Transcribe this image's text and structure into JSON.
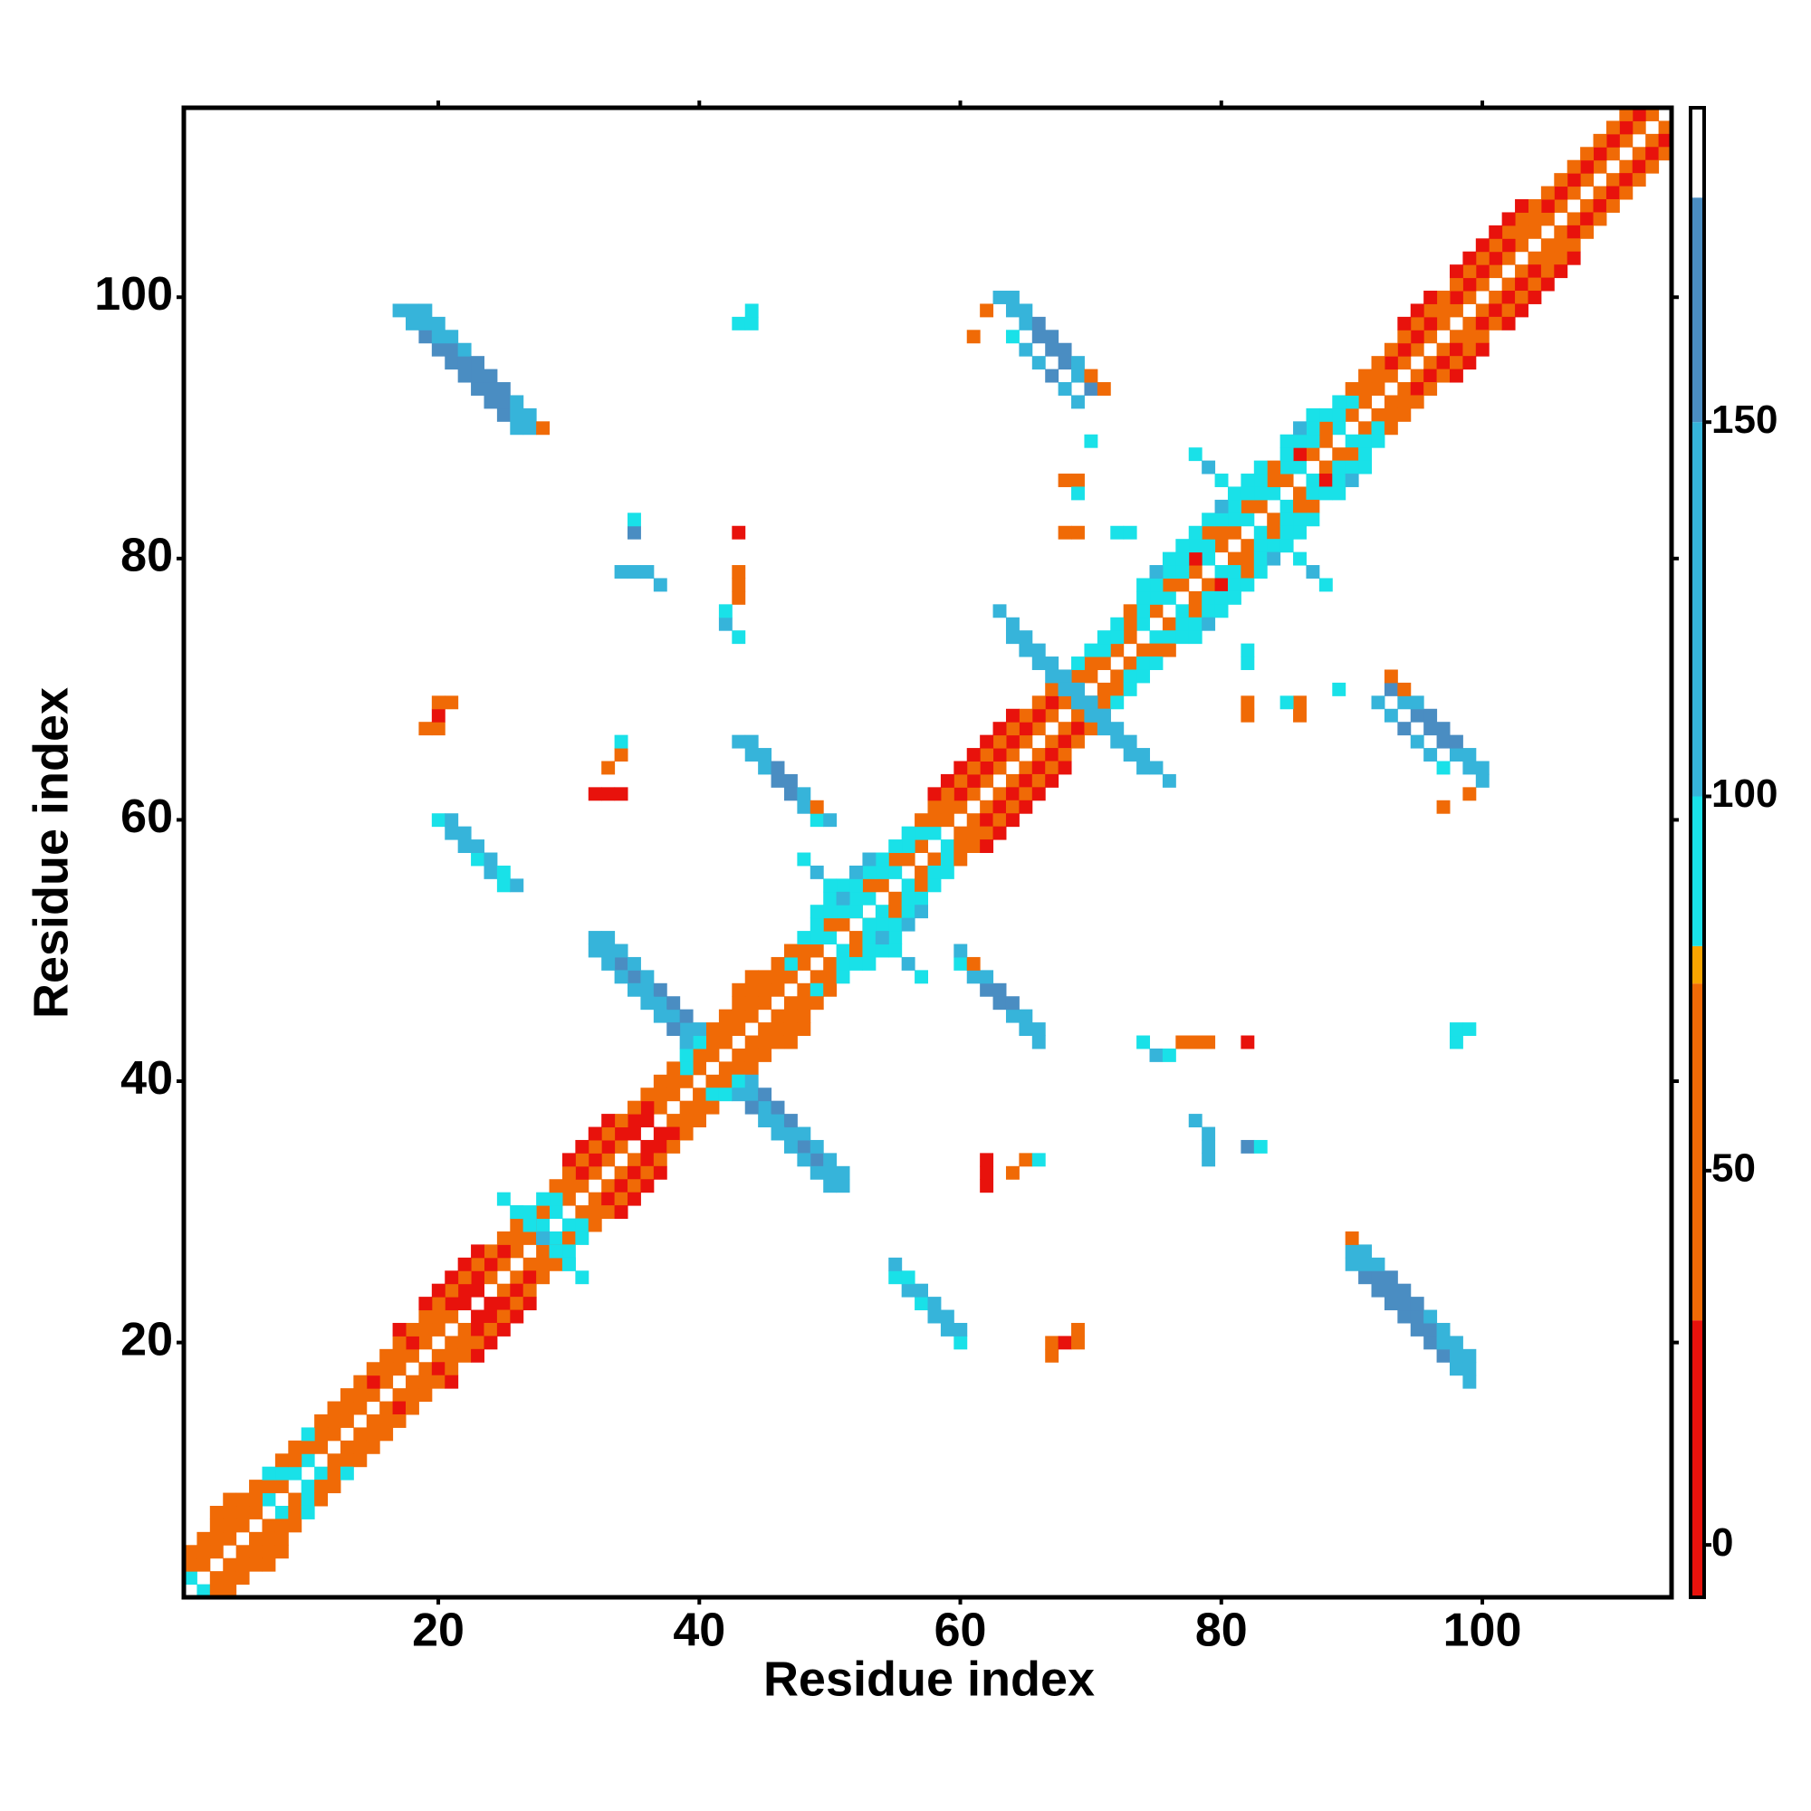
{
  "chart_data": {
    "type": "heatmap",
    "xlabel": "Residue index",
    "ylabel": "Residue index",
    "xlim": [
      0.5,
      114.5
    ],
    "ylim": [
      0.5,
      114.5
    ],
    "xticks": [
      20,
      40,
      60,
      80,
      100
    ],
    "yticks": [
      20,
      40,
      60,
      80,
      100
    ],
    "symmetric": true,
    "colorbar": {
      "lim": [
        -7,
        192
      ],
      "ticks": [
        0,
        50,
        100,
        150
      ],
      "bands": [
        {
          "from": -7,
          "to": 30,
          "color": "#e8120c"
        },
        {
          "from": 30,
          "to": 75,
          "color": "#f06a06"
        },
        {
          "from": 75,
          "to": 80,
          "color": "#f8a400"
        },
        {
          "from": 80,
          "to": 100,
          "color": "#19e1e8"
        },
        {
          "from": 100,
          "to": 150,
          "color": "#36b4da"
        },
        {
          "from": 150,
          "to": 180,
          "color": "#4a8dc2"
        },
        {
          "from": 180,
          "to": 192,
          "color": "#ffffff"
        }
      ]
    },
    "runs": [
      {
        "x": 1,
        "y": 2,
        "step": [
          1,
          1
        ],
        "values": [
          90,
          50,
          50,
          50,
          50,
          50,
          90,
          50,
          90,
          90,
          50,
          50,
          50,
          50,
          50,
          50,
          50,
          50,
          50,
          50,
          50,
          10,
          10,
          50,
          50,
          50,
          50,
          90,
          90,
          50,
          50,
          50,
          50,
          50,
          10,
          10,
          50,
          50,
          50,
          50,
          50,
          50,
          50,
          50,
          50,
          50,
          50,
          50,
          50,
          90,
          50,
          50,
          90,
          50,
          90,
          50,
          50,
          90,
          50,
          50,
          50,
          50,
          50,
          50,
          50,
          50,
          50,
          50,
          50,
          50,
          50,
          50,
          50,
          90,
          50,
          90,
          50,
          50,
          90,
          50,
          50,
          90,
          50,
          90,
          50,
          90,
          50,
          50,
          90,
          50,
          50,
          50,
          50,
          50,
          50,
          50,
          50,
          50,
          50,
          50,
          50,
          50,
          50,
          50,
          50,
          50,
          50,
          50,
          50,
          50,
          50,
          50,
          50
        ]
      },
      {
        "x": 1,
        "y": 3,
        "step": [
          1,
          1
        ],
        "values": [
          50,
          50,
          50,
          50,
          50,
          50,
          50,
          90,
          50,
          50,
          50,
          50,
          50,
          50,
          10,
          50,
          50,
          10,
          50,
          50,
          10,
          10,
          10,
          10,
          10,
          50,
          50,
          50,
          90,
          50,
          10,
          10,
          10,
          10,
          10,
          10,
          50,
          50,
          90,
          50,
          50,
          50,
          50,
          50,
          50,
          50,
          90,
          50,
          90,
          50,
          90,
          90,
          50,
          90,
          50,
          90,
          90,
          50,
          50,
          10,
          10,
          10,
          10,
          10,
          10,
          10,
          10,
          50,
          50,
          50,
          90,
          90,
          50,
          90,
          90,
          50,
          90,
          10,
          90,
          50,
          90,
          50,
          90,
          50,
          90,
          10,
          90,
          50,
          90,
          90,
          50,
          50,
          10,
          10,
          10,
          10,
          50,
          10,
          10,
          10,
          10,
          10,
          50,
          50,
          10,
          10,
          10,
          10,
          10,
          10,
          10,
          10
        ]
      },
      {
        "x": 1,
        "y": 4,
        "step": [
          1,
          1
        ],
        "values": [
          50,
          50,
          50,
          50,
          50,
          50,
          90,
          50,
          50,
          90,
          50,
          50,
          50,
          50,
          50,
          50,
          50,
          50,
          50,
          50,
          50,
          50,
          50,
          50,
          50,
          50,
          90,
          90,
          50,
          50,
          50,
          50,
          50,
          50,
          50,
          50,
          50,
          50,
          90,
          90,
          50,
          50,
          50,
          50,
          50,
          50,
          50,
          90,
          90,
          90,
          90,
          90,
          90,
          90,
          90,
          90,
          50,
          50,
          50,
          50,
          50,
          50,
          50,
          50,
          50,
          50,
          50,
          50,
          90,
          90,
          90,
          90,
          50,
          90,
          90,
          90,
          90,
          90,
          50,
          90,
          90,
          90,
          90,
          50,
          90,
          90,
          90,
          90,
          90,
          50,
          50,
          50,
          50,
          50,
          50,
          50,
          50,
          50,
          50,
          50,
          50,
          50,
          50,
          50,
          50,
          50,
          50,
          50,
          50,
          50,
          50
        ]
      },
      {
        "x": 1,
        "y": 5,
        "step": [
          1,
          1
        ],
        "values": [
          null,
          null,
          50,
          50,
          null,
          null,
          null,
          null,
          null,
          null,
          null,
          null,
          null,
          null,
          null,
          null,
          10,
          null,
          10,
          10,
          10,
          10,
          10,
          null,
          null,
          null,
          null,
          null,
          null,
          10,
          10,
          10,
          10,
          null,
          null,
          null,
          null,
          null,
          null,
          null,
          null,
          null,
          50,
          50,
          null,
          null,
          null,
          null,
          90,
          90,
          90,
          120,
          120,
          null,
          null,
          null,
          null,
          10,
          10,
          10,
          10,
          10,
          10,
          10,
          null,
          null,
          null,
          null,
          null,
          null,
          null,
          null,
          null,
          90,
          120,
          90,
          90,
          90,
          90,
          120,
          90,
          90,
          90,
          null,
          90,
          120,
          90,
          null,
          null,
          null,
          null,
          null,
          null,
          10,
          10,
          10,
          null,
          10,
          10,
          10,
          10,
          10,
          10,
          null,
          null,
          null,
          null,
          null,
          null,
          null
        ]
      },
      {
        "x": 17,
        "y": 99,
        "step": [
          1,
          -1
        ],
        "values": [
          120,
          120,
          160,
          160,
          160,
          160,
          160,
          160,
          160,
          120
        ]
      },
      {
        "x": 18,
        "y": 99,
        "step": [
          1,
          -1
        ],
        "values": [
          120,
          120,
          120,
          160,
          160,
          160,
          160,
          160,
          120,
          120
        ]
      },
      {
        "x": 19,
        "y": 99,
        "step": [
          1,
          -1
        ],
        "values": [
          120,
          120,
          120,
          120,
          160,
          160,
          160,
          120,
          120,
          75
        ]
      },
      {
        "x": 32,
        "y": 51,
        "step": [
          1,
          -1
        ],
        "values": [
          120,
          120,
          160,
          160,
          120,
          120,
          120,
          120,
          90
        ]
      },
      {
        "x": 33,
        "y": 51,
        "step": [
          1,
          -1
        ],
        "values": [
          120,
          120,
          120,
          120,
          160,
          160,
          160,
          120
        ]
      },
      {
        "x": 32,
        "y": 50,
        "step": [
          1,
          -1
        ],
        "values": [
          120,
          120,
          120,
          120,
          120,
          120,
          160,
          120
        ]
      },
      {
        "x": 20,
        "y": 60,
        "step": [
          1,
          -1
        ],
        "values": [
          90,
          120,
          120,
          90,
          120,
          90
        ]
      },
      {
        "x": 21,
        "y": 60,
        "step": [
          1,
          -1
        ],
        "values": [
          120,
          120,
          120,
          120,
          90,
          120
        ]
      },
      {
        "x": 43,
        "y": 66,
        "step": [
          1,
          -1
        ],
        "values": [
          120,
          120,
          120,
          160,
          160,
          120,
          90
        ]
      },
      {
        "x": 44,
        "y": 66,
        "step": [
          1,
          -1
        ],
        "values": [
          120,
          120,
          160,
          160,
          120,
          75,
          120
        ]
      },
      {
        "x": 63,
        "y": 100,
        "step": [
          1,
          -1
        ],
        "values": [
          120,
          120,
          120,
          160,
          160,
          160,
          120,
          160
        ]
      },
      {
        "x": 64,
        "y": 100,
        "step": [
          1,
          -1
        ],
        "values": [
          120,
          120,
          160,
          160,
          160,
          120,
          50,
          50
        ]
      },
      {
        "x": 62,
        "y": 99,
        "step": [
          1,
          -1
        ],
        "values": [
          50,
          null,
          90,
          120,
          120,
          160,
          120,
          120
        ]
      },
      {
        "x": 63,
        "y": 76,
        "step": [
          1,
          -1
        ],
        "values": [
          120,
          120,
          120,
          120,
          120,
          120,
          160,
          120,
          120
        ]
      },
      {
        "x": 64,
        "y": 74,
        "step": [
          1,
          -1
        ],
        "values": [
          120,
          120,
          120,
          120,
          120,
          120,
          120
        ]
      },
      {
        "x": 25,
        "y": 31,
        "step": [
          1,
          -1
        ],
        "values": [
          90,
          90,
          120,
          120,
          90,
          90
        ]
      },
      {
        "x": 48,
        "y": 57,
        "step": [
          1,
          -1
        ],
        "values": [
          90,
          120,
          90,
          120,
          90
        ]
      },
      {
        "x": 78,
        "y": 88,
        "step": [
          1,
          -1
        ],
        "values": [
          90,
          120,
          90,
          90
        ]
      },
      {
        "x": 43,
        "y": 98,
        "step": [
          1,
          0
        ],
        "values": [
          90,
          90
        ]
      },
      {
        "x": 44,
        "y": 99,
        "step": [
          1,
          0
        ],
        "values": [
          90
        ]
      },
      {
        "x": 61,
        "y": 97,
        "step": [
          1,
          0
        ],
        "values": [
          50
        ]
      },
      {
        "x": 43,
        "y": 82,
        "step": [
          1,
          0
        ],
        "values": [
          10
        ]
      },
      {
        "x": 43,
        "y": 77,
        "step": [
          0,
          1
        ],
        "values": [
          50,
          50,
          50
        ]
      },
      {
        "x": 42,
        "y": 75,
        "step": [
          0,
          1
        ],
        "values": [
          120,
          90
        ]
      },
      {
        "x": 43,
        "y": 74,
        "step": [
          1,
          0
        ],
        "values": [
          90
        ]
      },
      {
        "x": 35,
        "y": 82,
        "step": [
          0,
          1
        ],
        "values": [
          160,
          90
        ]
      },
      {
        "x": 34,
        "y": 79,
        "step": [
          1,
          0
        ],
        "values": [
          120,
          120,
          120
        ]
      },
      {
        "x": 37,
        "y": 78,
        "step": [
          1,
          0
        ],
        "values": [
          120
        ]
      },
      {
        "x": 19,
        "y": 67,
        "step": [
          1,
          0
        ],
        "values": [
          75,
          75
        ]
      },
      {
        "x": 20,
        "y": 68,
        "step": [
          1,
          0
        ],
        "values": [
          10
        ]
      },
      {
        "x": 20,
        "y": 69,
        "step": [
          1,
          0
        ],
        "values": [
          50,
          50
        ]
      },
      {
        "x": 32,
        "y": 62,
        "step": [
          1,
          0
        ],
        "values": [
          10,
          10,
          10
        ]
      },
      {
        "x": 33,
        "y": 64,
        "step": [
          1,
          1
        ],
        "values": [
          50,
          50
        ]
      },
      {
        "x": 34,
        "y": 66,
        "step": [
          1,
          0
        ],
        "values": [
          90
        ]
      },
      {
        "x": 68,
        "y": 82,
        "step": [
          1,
          0
        ],
        "values": [
          75,
          75
        ]
      },
      {
        "x": 72,
        "y": 82,
        "step": [
          1,
          0
        ],
        "values": [
          90,
          90
        ]
      },
      {
        "x": 68,
        "y": 86,
        "step": [
          1,
          0
        ],
        "values": [
          50,
          50
        ]
      },
      {
        "x": 69,
        "y": 85,
        "step": [
          1,
          0
        ],
        "values": [
          90
        ]
      },
      {
        "x": 70,
        "y": 89,
        "step": [
          1,
          0
        ],
        "values": [
          90
        ]
      }
    ]
  }
}
